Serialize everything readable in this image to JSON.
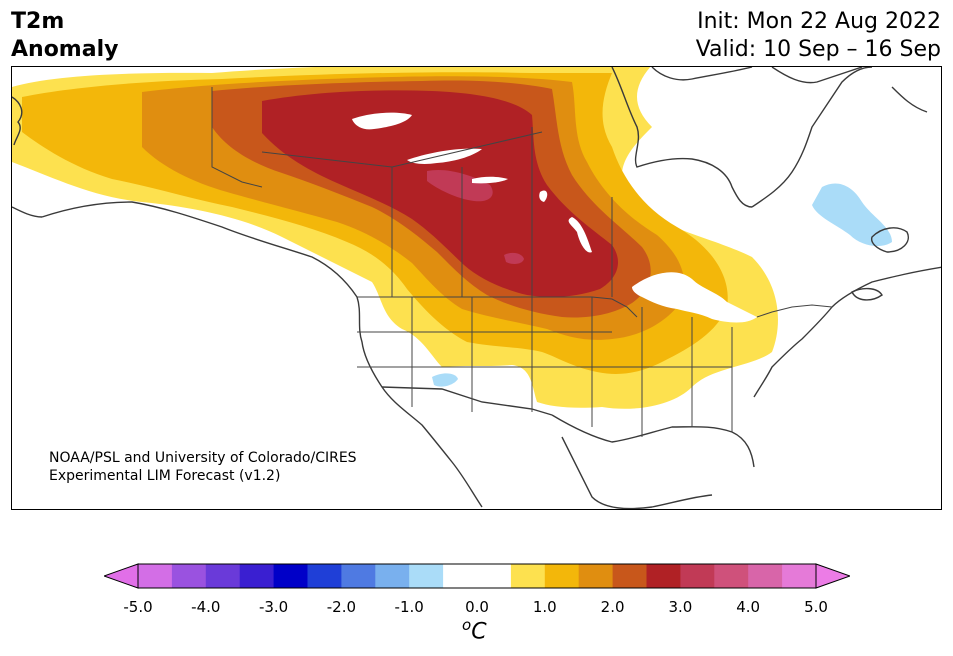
{
  "title": {
    "left_line1": "T2m",
    "left_line2": "Anomaly",
    "right_line1": "Init: Mon 22 Aug 2022",
    "right_line2": "Valid: 10 Sep – 16 Sep"
  },
  "credit": {
    "line1": "NOAA/PSL and University of Colorado/CIRES",
    "line2": "Experimental LIM Forecast (v1.2)"
  },
  "colorbar": {
    "ticks": [
      "-5.0",
      "-4.0",
      "-3.0",
      "-2.0",
      "-1.0",
      "0.0",
      "1.0",
      "2.0",
      "3.0",
      "4.0",
      "5.0"
    ],
    "unit_base": "C",
    "unit_sup": "o",
    "colors": [
      "#d36ee6",
      "#9a52e0",
      "#6a3ad9",
      "#3a1fd1",
      "#0000c8",
      "#1f3fd7",
      "#4f7ae2",
      "#79b0ee",
      "#aadcf8",
      "#ffffff",
      "#ffffff",
      "#fde14f",
      "#f3b70a",
      "#e08e10",
      "#c8571b",
      "#b02125",
      "#c13a56",
      "#cf517b",
      "#d865a9",
      "#e57ad8"
    ],
    "under_color": "#e16fe8",
    "over_color": "#ec7ce6"
  },
  "map_colors": {
    "anom_1": "#fde14f",
    "anom_1_5": "#f3b70a",
    "anom_2": "#e08e10",
    "anom_2_5": "#c8571b",
    "anom_3": "#b02125",
    "anom_3_5": "#c13a56",
    "neg_1": "#aadcf8",
    "coast": "#3a3a3a"
  }
}
